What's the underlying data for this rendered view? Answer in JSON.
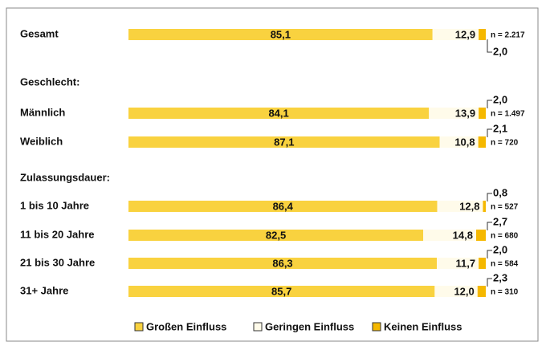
{
  "chart_data": {
    "type": "stacked-bar-horizontal",
    "categories": [
      "Gesamt",
      "Männlich",
      "Weiblich",
      "1 bis 10 Jahre",
      "11 bis 20 Jahre",
      "21 bis 30 Jahre",
      "31+ Jahre"
    ],
    "group_labels": [
      "Geschlecht:",
      "Zulassungsdauer:"
    ],
    "n_labels": [
      "n = 2.217",
      "n = 1.497",
      "n = 720",
      "n = 527",
      "n = 680",
      "n = 584",
      "n = 310"
    ],
    "xlim": [
      0,
      100
    ],
    "series": [
      {
        "name": "Großen Einfluss",
        "color": "#f9d23f",
        "values": [
          85.1,
          84.1,
          87.1,
          86.4,
          82.5,
          86.3,
          85.7
        ],
        "value_labels": [
          "85,1",
          "84,1",
          "87,1",
          "86,4",
          "82,5",
          "86,3",
          "85,7"
        ]
      },
      {
        "name": "Geringen Einfluss",
        "color": "#fffbea",
        "values": [
          12.9,
          13.9,
          10.8,
          12.8,
          14.8,
          11.7,
          12.0
        ],
        "value_labels": [
          "12,9",
          "13,9",
          "10,8",
          "12,8",
          "14,8",
          "11,7",
          "12,0"
        ]
      },
      {
        "name": "Keinen Einfluss",
        "color": "#f5b800",
        "values": [
          2.0,
          2.0,
          2.1,
          0.8,
          2.7,
          2.0,
          2.3
        ],
        "value_labels": [
          "2,0",
          "2,0",
          "2,1",
          "0,8",
          "2,7",
          "2,0",
          "2,3"
        ]
      }
    ]
  }
}
